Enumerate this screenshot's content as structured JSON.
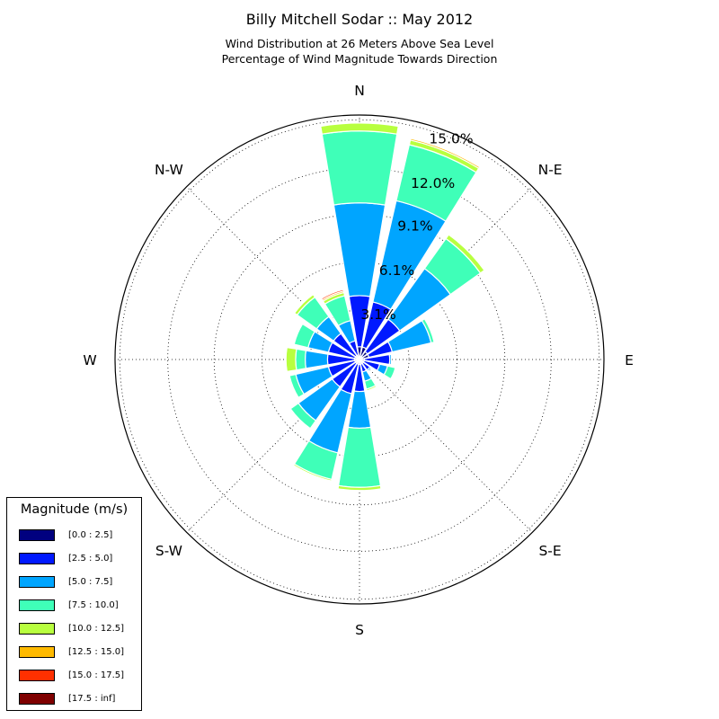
{
  "title": "Billy Mitchell Sodar :: May 2012",
  "subtitle_1": "Wind Distribution at 26 Meters Above Sea Level",
  "subtitle_2": "Percentage of Wind Magnitude Towards Direction",
  "chart_data": {
    "type": "windrose",
    "directions": [
      "N",
      "NNE",
      "NE",
      "ENE",
      "E",
      "ESE",
      "SE",
      "SSE",
      "S",
      "SSW",
      "SW",
      "WSW",
      "W",
      "WNW",
      "NW",
      "NNW"
    ],
    "direction_labels": [
      "N",
      "N-E",
      "E",
      "S-E",
      "S",
      "S-W",
      "W",
      "N-W"
    ],
    "radial_tick_labels": [
      "3.1%",
      "6.1%",
      "9.1%",
      "12.0%",
      "15.0%"
    ],
    "radial_ticks": [
      3.1,
      6.1,
      9.1,
      12.0,
      15.0
    ],
    "r_max": 15.3,
    "grid": true,
    "legend_position": "lower-left",
    "legend_title": "Magnitude (m/s)",
    "bins": [
      {
        "label": "[0.0 : 2.5]",
        "color": "#00007f"
      },
      {
        "label": "[2.5 : 5.0]",
        "color": "#0019ff"
      },
      {
        "label": "[5.0 : 7.5]",
        "color": "#00a5ff"
      },
      {
        "label": "[7.5 : 10.0]",
        "color": "#3fffb8"
      },
      {
        "label": "[10.0 : 12.5]",
        "color": "#b8ff3f"
      },
      {
        "label": "[12.5 : 15.0]",
        "color": "#ffba00"
      },
      {
        "label": "[15.0 : 17.5]",
        "color": "#ff3000"
      },
      {
        "label": "[17.5 : inf]",
        "color": "#7f0000"
      }
    ],
    "cumulative_percent": [
      [
        0.8,
        4.0,
        9.8,
        14.3,
        14.8,
        14.8,
        14.8,
        14.8
      ],
      [
        0.8,
        3.7,
        10.2,
        13.8,
        14.1,
        14.2,
        14.2,
        14.2
      ],
      [
        0.6,
        3.1,
        7.0,
        9.3,
        9.6,
        9.6,
        9.6,
        9.6
      ],
      [
        0.6,
        2.1,
        4.6,
        4.8,
        4.8,
        4.8,
        4.8,
        4.8
      ],
      [
        0.3,
        1.9,
        2.0,
        2.0,
        2.0,
        2.0,
        2.0,
        2.0
      ],
      [
        0.3,
        1.3,
        1.8,
        2.3,
        2.3,
        2.3,
        2.3,
        2.3
      ],
      [
        0.3,
        0.8,
        0.9,
        0.9,
        0.9,
        0.9,
        0.9,
        0.9
      ],
      [
        0.3,
        0.8,
        1.4,
        1.9,
        2.0,
        2.0,
        2.0,
        2.0
      ],
      [
        0.3,
        2.0,
        4.3,
        8.0,
        8.2,
        8.2,
        8.2,
        8.2
      ],
      [
        0.3,
        2.2,
        6.0,
        7.7,
        7.8,
        7.8,
        7.8,
        7.8
      ],
      [
        0.3,
        2.1,
        4.7,
        5.3,
        5.3,
        5.3,
        5.3,
        5.3
      ],
      [
        0.3,
        2.0,
        4.1,
        4.5,
        4.5,
        4.5,
        4.5,
        4.5
      ],
      [
        0.3,
        2.0,
        3.4,
        4.0,
        4.6,
        4.6,
        4.6,
        4.6
      ],
      [
        0.3,
        2.0,
        3.3,
        4.2,
        4.2,
        4.2,
        4.2,
        4.2
      ],
      [
        0.3,
        2.0,
        3.3,
        4.8,
        5.0,
        5.0,
        5.0,
        5.0
      ],
      [
        0.3,
        1.2,
        2.5,
        4.1,
        4.3,
        4.4,
        4.5,
        4.5
      ]
    ]
  }
}
